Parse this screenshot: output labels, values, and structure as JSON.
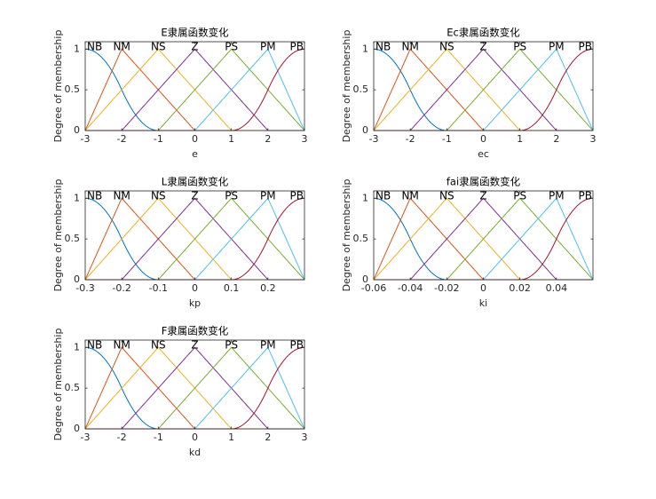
{
  "chart_data": [
    {
      "type": "line",
      "title": "E隶属函数变化",
      "xlabel": "e",
      "ylabel": "Degree of membership",
      "xlim": [
        -3,
        3
      ],
      "xticks": [
        -3,
        -2,
        -1,
        0,
        1,
        2,
        3
      ],
      "ylim": [
        0,
        1.09
      ],
      "yticks": [
        0,
        0.5,
        1
      ],
      "series": [
        {
          "name": "NB",
          "color": "#0072BD",
          "mf": "zmf",
          "params": [
            -3,
            -1
          ]
        },
        {
          "name": "NM",
          "color": "#D95319",
          "mf": "trimf",
          "params": [
            -3,
            -2,
            0
          ]
        },
        {
          "name": "NS",
          "color": "#EDB120",
          "mf": "trimf",
          "params": [
            -3,
            -1,
            1
          ]
        },
        {
          "name": "Z",
          "color": "#7E2F8E",
          "mf": "trimf",
          "params": [
            -2,
            0,
            2
          ]
        },
        {
          "name": "PS",
          "color": "#77AC30",
          "mf": "trimf",
          "params": [
            -1,
            1,
            3
          ]
        },
        {
          "name": "PM",
          "color": "#4DBEEE",
          "mf": "trimf",
          "params": [
            0,
            2,
            3
          ]
        },
        {
          "name": "PB",
          "color": "#A2142F",
          "mf": "smf",
          "params": [
            1,
            3
          ]
        }
      ]
    },
    {
      "type": "line",
      "title": "Ec隶属函数变化",
      "xlabel": "ec",
      "ylabel": "Degree of membership",
      "xlim": [
        -3,
        3
      ],
      "xticks": [
        -3,
        -2,
        -1,
        0,
        1,
        2,
        3
      ],
      "ylim": [
        0,
        1.09
      ],
      "yticks": [
        0,
        0.5,
        1
      ],
      "series": [
        {
          "name": "NB",
          "color": "#0072BD",
          "mf": "zmf",
          "params": [
            -3,
            -1
          ]
        },
        {
          "name": "NM",
          "color": "#D95319",
          "mf": "trimf",
          "params": [
            -3,
            -2,
            0
          ]
        },
        {
          "name": "NS",
          "color": "#EDB120",
          "mf": "trimf",
          "params": [
            -3,
            -1,
            1
          ]
        },
        {
          "name": "Z",
          "color": "#7E2F8E",
          "mf": "trimf",
          "params": [
            -2,
            0,
            2
          ]
        },
        {
          "name": "PS",
          "color": "#77AC30",
          "mf": "trimf",
          "params": [
            -1,
            1,
            3
          ]
        },
        {
          "name": "PM",
          "color": "#4DBEEE",
          "mf": "trimf",
          "params": [
            0,
            2,
            3
          ]
        },
        {
          "name": "PB",
          "color": "#A2142F",
          "mf": "smf",
          "params": [
            1,
            3
          ]
        }
      ]
    },
    {
      "type": "line",
      "title": "L隶属函数变化",
      "xlabel": "kp",
      "ylabel": "Degree of membership",
      "xlim": [
        -0.3,
        0.3
      ],
      "xticks": [
        -0.3,
        -0.2,
        -0.1,
        0,
        0.1,
        0.2
      ],
      "ylim": [
        0,
        1.09
      ],
      "yticks": [
        0,
        0.5,
        1
      ],
      "series": [
        {
          "name": "NB",
          "color": "#0072BD",
          "mf": "zmf",
          "params": [
            -0.3,
            -0.1
          ]
        },
        {
          "name": "NM",
          "color": "#D95319",
          "mf": "trimf",
          "params": [
            -0.3,
            -0.2,
            0
          ]
        },
        {
          "name": "NS",
          "color": "#EDB120",
          "mf": "trimf",
          "params": [
            -0.3,
            -0.1,
            0.1
          ]
        },
        {
          "name": "Z",
          "color": "#7E2F8E",
          "mf": "trimf",
          "params": [
            -0.2,
            0,
            0.2
          ]
        },
        {
          "name": "PS",
          "color": "#77AC30",
          "mf": "trimf",
          "params": [
            -0.1,
            0.1,
            0.3
          ]
        },
        {
          "name": "PM",
          "color": "#4DBEEE",
          "mf": "trimf",
          "params": [
            0,
            0.2,
            0.3
          ]
        },
        {
          "name": "PB",
          "color": "#A2142F",
          "mf": "smf",
          "params": [
            0.1,
            0.3
          ]
        }
      ]
    },
    {
      "type": "line",
      "title": "fai隶属函数变化",
      "xlabel": "ki",
      "ylabel": "Degree of membership",
      "xlim": [
        -0.06,
        0.06
      ],
      "xticks": [
        -0.06,
        -0.04,
        -0.02,
        0,
        0.02,
        0.04
      ],
      "ylim": [
        0,
        1.09
      ],
      "yticks": [
        0,
        0.5,
        1
      ],
      "series": [
        {
          "name": "NB",
          "color": "#0072BD",
          "mf": "zmf",
          "params": [
            -0.06,
            -0.02
          ]
        },
        {
          "name": "NM",
          "color": "#D95319",
          "mf": "trimf",
          "params": [
            -0.06,
            -0.04,
            0
          ]
        },
        {
          "name": "NS",
          "color": "#EDB120",
          "mf": "trimf",
          "params": [
            -0.06,
            -0.02,
            0.02
          ]
        },
        {
          "name": "Z",
          "color": "#7E2F8E",
          "mf": "trimf",
          "params": [
            -0.04,
            0,
            0.04
          ]
        },
        {
          "name": "PS",
          "color": "#77AC30",
          "mf": "trimf",
          "params": [
            -0.02,
            0.02,
            0.06
          ]
        },
        {
          "name": "PM",
          "color": "#4DBEEE",
          "mf": "trimf",
          "params": [
            0,
            0.04,
            0.06
          ]
        },
        {
          "name": "PB",
          "color": "#A2142F",
          "mf": "smf",
          "params": [
            0.02,
            0.06
          ]
        }
      ]
    },
    {
      "type": "line",
      "title": "F隶属函数变化",
      "xlabel": "kd",
      "ylabel": "Degree of membership",
      "xlim": [
        -3,
        3
      ],
      "xticks": [
        -3,
        -2,
        -1,
        0,
        1,
        2,
        3
      ],
      "ylim": [
        0,
        1.09
      ],
      "yticks": [
        0,
        0.5,
        1
      ],
      "series": [
        {
          "name": "NB",
          "color": "#0072BD",
          "mf": "zmf",
          "params": [
            -3,
            -1
          ]
        },
        {
          "name": "NM",
          "color": "#D95319",
          "mf": "trimf",
          "params": [
            -3,
            -2,
            0
          ]
        },
        {
          "name": "NS",
          "color": "#EDB120",
          "mf": "trimf",
          "params": [
            -3,
            -1,
            1
          ]
        },
        {
          "name": "Z",
          "color": "#7E2F8E",
          "mf": "trimf",
          "params": [
            -2,
            0,
            2
          ]
        },
        {
          "name": "PS",
          "color": "#77AC30",
          "mf": "trimf",
          "params": [
            -1,
            1,
            3
          ]
        },
        {
          "name": "PM",
          "color": "#4DBEEE",
          "mf": "trimf",
          "params": [
            0,
            2,
            3
          ]
        },
        {
          "name": "PB",
          "color": "#A2142F",
          "mf": "smf",
          "params": [
            1,
            3
          ]
        }
      ]
    }
  ]
}
